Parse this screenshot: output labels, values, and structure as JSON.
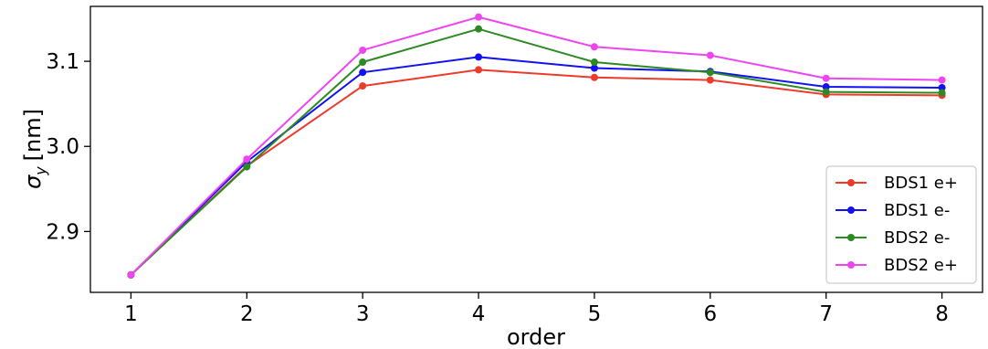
{
  "chart_data": {
    "type": "line",
    "title": "",
    "xlabel": "order",
    "ylabel": "σ_y [nm]",
    "ylabel_parts": {
      "symbol": "σ",
      "subscript": "y",
      "unit": "[nm]"
    },
    "x": [
      1,
      2,
      3,
      4,
      5,
      6,
      7,
      8
    ],
    "xticks": [
      "1",
      "2",
      "3",
      "4",
      "5",
      "6",
      "7",
      "8"
    ],
    "xlim": [
      0.65,
      8.35
    ],
    "ylim": [
      2.8285,
      3.1645
    ],
    "yticks": [
      2.9,
      3.0,
      3.1
    ],
    "ytick_labels": [
      "2.9",
      "3.0",
      "3.1"
    ],
    "grid": false,
    "legend_position": "lower-right",
    "series": [
      {
        "name": "BDS1 e+",
        "color": "#ee3a2a",
        "values": [
          2.849,
          2.977,
          3.071,
          3.09,
          3.081,
          3.078,
          3.061,
          3.06
        ]
      },
      {
        "name": "BDS1 e-",
        "color": "#1212f0",
        "values": [
          2.849,
          2.982,
          3.087,
          3.105,
          3.092,
          3.088,
          3.07,
          3.069
        ]
      },
      {
        "name": "BDS2 e-",
        "color": "#2d8a22",
        "values": [
          2.849,
          2.976,
          3.099,
          3.138,
          3.099,
          3.087,
          3.064,
          3.063
        ]
      },
      {
        "name": "BDS2 e+",
        "color": "#ee45ee",
        "values": [
          2.849,
          2.985,
          3.113,
          3.152,
          3.117,
          3.107,
          3.08,
          3.078
        ]
      }
    ]
  }
}
